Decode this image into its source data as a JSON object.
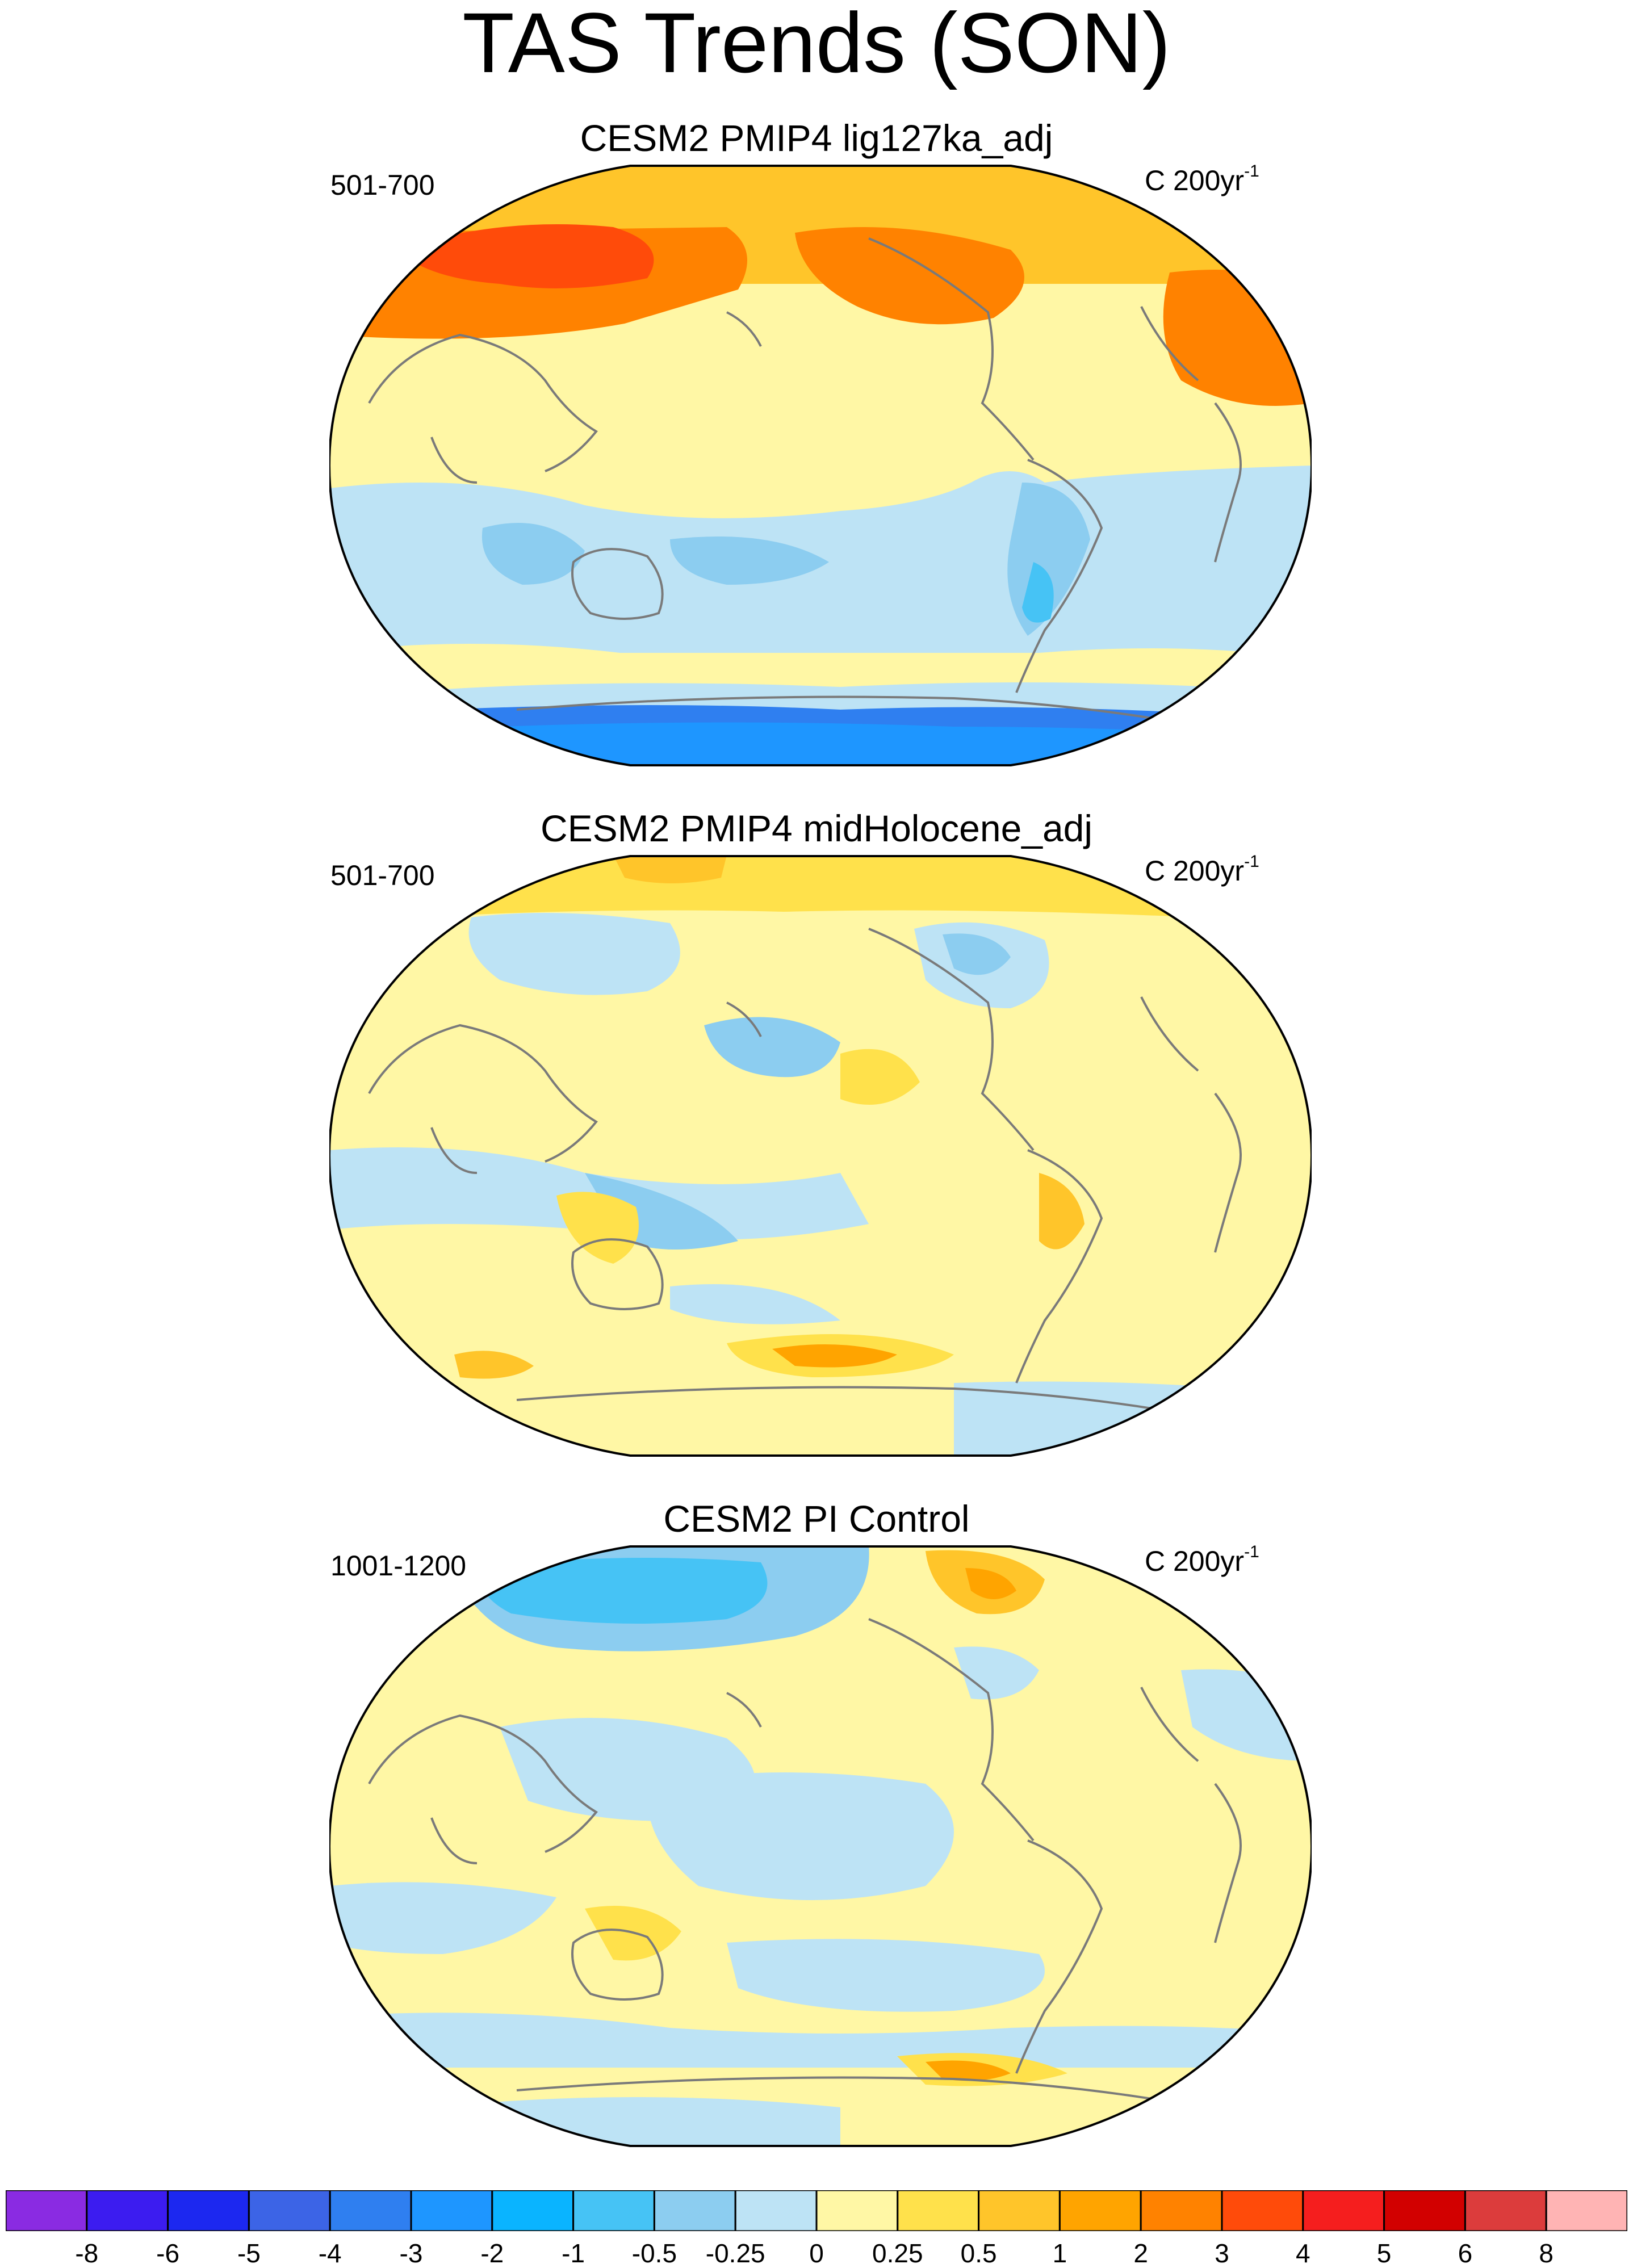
{
  "figure": {
    "title": "TAS Trends (SON)"
  },
  "panels": [
    {
      "title": "CESM2 PMIP4 lig127ka_adj",
      "period": "501-700",
      "units_text": "C 200yr",
      "units_exp": "-1"
    },
    {
      "title": "CESM2 PMIP4 midHolocene_adj",
      "period": "501-700",
      "units_text": "C 200yr",
      "units_exp": "-1"
    },
    {
      "title": "CESM2 PI Control",
      "period": "1001-1200",
      "units_text": "C 200yr",
      "units_exp": "-1"
    }
  ],
  "colorbar": {
    "colors": [
      "#8a2be2",
      "#3c1cf0",
      "#1c28f0",
      "#3c64e6",
      "#2f7ff0",
      "#1e96ff",
      "#0ab4ff",
      "#46c3f5",
      "#8ccdf0",
      "#bde3f5",
      "#fff7a5",
      "#ffe14b",
      "#ffc52a",
      "#ffa400",
      "#ff8200",
      "#ff4b0a",
      "#f51e1e",
      "#d20000",
      "#dc3c3c",
      "#ffb4b4"
    ],
    "labels": [
      "-8",
      "-6",
      "-5",
      "-4",
      "-3",
      "-2",
      "-1",
      "-0.5",
      "-0.25",
      "0",
      "0.25",
      "0.5",
      "1",
      "2",
      "3",
      "4",
      "5",
      "6",
      "8"
    ]
  }
}
